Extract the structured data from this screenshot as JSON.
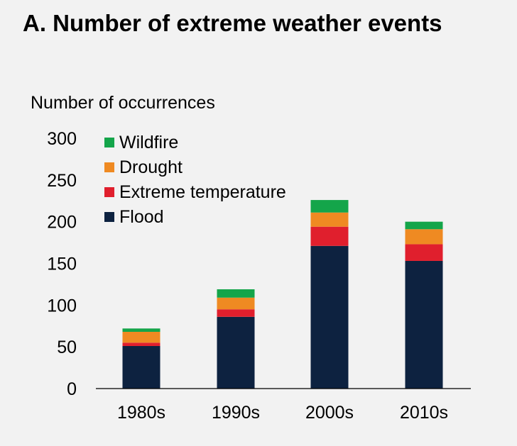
{
  "chart_data": {
    "type": "bar",
    "stacked": true,
    "title": "A. Number of extreme weather events",
    "ylabel": "Number of occurrences",
    "xlabel": "",
    "categories": [
      "1980s",
      "1990s",
      "2000s",
      "2010s"
    ],
    "ylim": [
      0,
      300
    ],
    "yticks": [
      0,
      50,
      100,
      150,
      200,
      250,
      300
    ],
    "series": [
      {
        "name": "Flood",
        "color": "#0d2240",
        "values": [
          51,
          86,
          171,
          153
        ]
      },
      {
        "name": "Extreme temperature",
        "color": "#e01f2d",
        "values": [
          4,
          9,
          23,
          20
        ]
      },
      {
        "name": "Drought",
        "color": "#ef8a22",
        "values": [
          13,
          14,
          17,
          18
        ]
      },
      {
        "name": "Wildfire",
        "color": "#14a54a",
        "values": [
          4,
          10,
          15,
          9
        ]
      }
    ],
    "legend_order": [
      "Wildfire",
      "Drought",
      "Extreme temperature",
      "Flood"
    ],
    "legend_position": "top-left",
    "grid": false
  }
}
